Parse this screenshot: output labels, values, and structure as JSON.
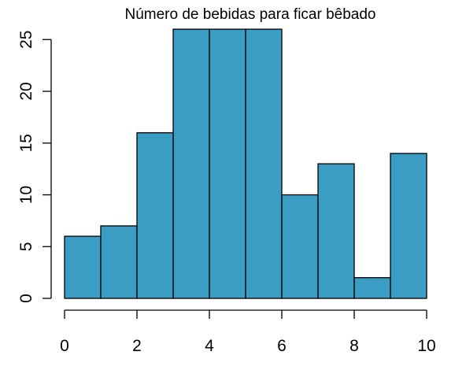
{
  "chart_data": {
    "type": "bar",
    "title": "Número de bebidas para ficar bêbado",
    "xlabel": "",
    "ylabel": "",
    "bins": [
      {
        "x0": 0,
        "x1": 1,
        "value": 6
      },
      {
        "x0": 1,
        "x1": 2,
        "value": 7
      },
      {
        "x0": 2,
        "x1": 3,
        "value": 16
      },
      {
        "x0": 3,
        "x1": 4,
        "value": 26
      },
      {
        "x0": 4,
        "x1": 5,
        "value": 26
      },
      {
        "x0": 5,
        "x1": 6,
        "value": 26
      },
      {
        "x0": 6,
        "x1": 7,
        "value": 10
      },
      {
        "x0": 7,
        "x1": 8,
        "value": 13
      },
      {
        "x0": 8,
        "x1": 9,
        "value": 2
      },
      {
        "x0": 9,
        "x1": 10,
        "value": 14
      }
    ],
    "xlim": [
      0,
      10
    ],
    "ylim": [
      0,
      26
    ],
    "x_ticks": [
      0,
      2,
      4,
      6,
      8,
      10
    ],
    "y_ticks": [
      0,
      5,
      10,
      15,
      20,
      25
    ],
    "bar_color": "#3c9dc4",
    "bar_edge_color": "#000000",
    "grid": false,
    "legend": "none"
  }
}
